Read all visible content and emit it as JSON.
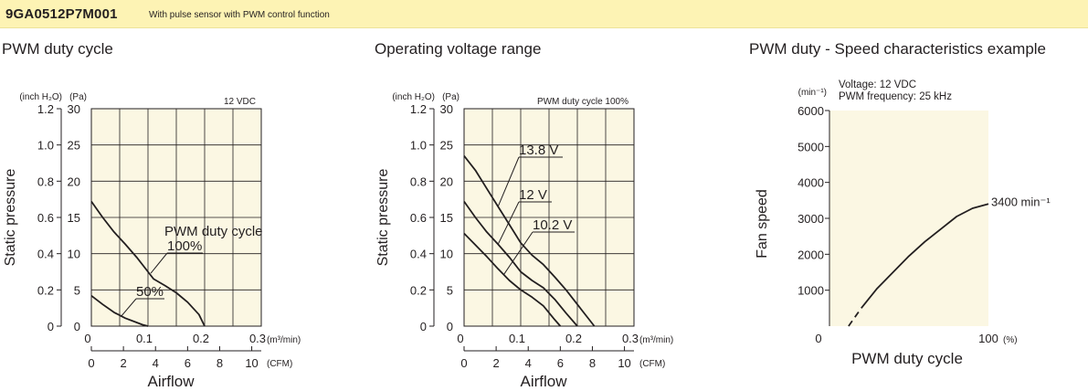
{
  "header": {
    "model": "9GA0512P7M001",
    "description": "With pulse sensor with PWM control function"
  },
  "colors": {
    "header_bg": "#fdf3b4",
    "plot_bg": "#fbf7e3",
    "grid": "#231f20",
    "curve": "#231f20"
  },
  "chart_data": [
    {
      "type": "line",
      "title": "PWM duty cycle",
      "xlabel": "Airflow",
      "ylabel": "Static pressure",
      "x_unit": "(m³/min)",
      "x2_unit": "(CFM)",
      "y_unit": "(Pa)",
      "y2_unit": "(inch H₂O)",
      "xlim": [
        0,
        0.3
      ],
      "ylim": [
        0,
        30
      ],
      "grid": true,
      "x_ticks": [
        "0",
        "0.1",
        "0.2",
        "0.3"
      ],
      "x2_ticks": [
        "0",
        "2",
        "4",
        "6",
        "8",
        "10"
      ],
      "y_ticks": [
        "0",
        "5",
        "10",
        "15",
        "20",
        "25",
        "30"
      ],
      "y2_ticks": [
        "0",
        "0.2",
        "0.4",
        "0.6",
        "0.8",
        "1.0",
        "1.2"
      ],
      "condition": "12 VDC",
      "curve_heading": "PWM duty cycle",
      "series": [
        {
          "name": "100%",
          "x": [
            0,
            0.02,
            0.04,
            0.06,
            0.08,
            0.1,
            0.11,
            0.13,
            0.15,
            0.17,
            0.19,
            0.2
          ],
          "y": [
            17.2,
            15.0,
            13.0,
            11.3,
            9.5,
            7.5,
            6.5,
            5.6,
            4.6,
            3.3,
            1.6,
            0.0
          ]
        },
        {
          "name": "50%",
          "x": [
            0,
            0.02,
            0.04,
            0.06,
            0.08,
            0.09,
            0.1
          ],
          "y": [
            4.2,
            3.0,
            1.9,
            1.1,
            0.5,
            0.2,
            0.0
          ]
        }
      ]
    },
    {
      "type": "line",
      "title": "Operating voltage range",
      "xlabel": "Airflow",
      "ylabel": "Static pressure",
      "x_unit": "(m³/min)",
      "x2_unit": "(CFM)",
      "y_unit": "(Pa)",
      "y2_unit": "(inch H₂O)",
      "xlim": [
        0,
        0.3
      ],
      "ylim": [
        0,
        30
      ],
      "grid": true,
      "x_ticks": [
        "0",
        "0.1",
        "0.2",
        "0.3"
      ],
      "x2_ticks": [
        "0",
        "2",
        "4",
        "6",
        "8",
        "10"
      ],
      "y_ticks": [
        "0",
        "5",
        "10",
        "15",
        "20",
        "25",
        "30"
      ],
      "y2_ticks": [
        "0",
        "0.2",
        "0.4",
        "0.6",
        "0.8",
        "1.0",
        "1.2"
      ],
      "condition": "PWM duty cycle 100%",
      "series": [
        {
          "name": "13.8 V",
          "x": [
            0,
            0.02,
            0.04,
            0.06,
            0.08,
            0.1,
            0.12,
            0.14,
            0.16,
            0.18,
            0.2,
            0.23
          ],
          "y": [
            23.5,
            21.5,
            19.0,
            16.5,
            14.0,
            11.5,
            9.8,
            8.5,
            6.8,
            5.0,
            3.0,
            0.0
          ]
        },
        {
          "name": "12 V",
          "x": [
            0,
            0.02,
            0.04,
            0.06,
            0.08,
            0.1,
            0.12,
            0.14,
            0.16,
            0.18,
            0.2
          ],
          "y": [
            17.2,
            15.0,
            13.0,
            11.3,
            9.5,
            7.5,
            6.3,
            5.3,
            3.7,
            1.8,
            0.0
          ]
        },
        {
          "name": "10.2 V",
          "x": [
            0,
            0.02,
            0.04,
            0.06,
            0.08,
            0.1,
            0.12,
            0.14,
            0.16,
            0.17
          ],
          "y": [
            12.8,
            11.2,
            9.6,
            7.9,
            6.3,
            5.0,
            4.0,
            2.8,
            0.9,
            0.0
          ]
        }
      ]
    },
    {
      "type": "line",
      "title": "PWM duty - Speed characteristics example",
      "xlabel": "PWM duty cycle",
      "ylabel": "Fan speed",
      "x_unit": "(%)",
      "y_unit": "(min⁻¹)",
      "xlim": [
        0,
        100
      ],
      "ylim": [
        0,
        6000
      ],
      "grid": false,
      "x_ticks": [
        "0",
        "100"
      ],
      "y_ticks": [
        "1000",
        "2000",
        "3000",
        "4000",
        "5000",
        "6000"
      ],
      "conditions": [
        "Voltage: 12 VDC",
        "PWM frequency: 25 kHz"
      ],
      "annotation": "3400 min⁻¹",
      "series": [
        {
          "name": "",
          "style": "dashed",
          "x": [
            12,
            20
          ],
          "y": [
            0,
            500
          ]
        },
        {
          "name": "",
          "style": "solid",
          "x": [
            20,
            30,
            40,
            50,
            60,
            70,
            80,
            90,
            100
          ],
          "y": [
            500,
            1050,
            1500,
            1950,
            2350,
            2700,
            3050,
            3280,
            3400
          ]
        }
      ]
    }
  ]
}
